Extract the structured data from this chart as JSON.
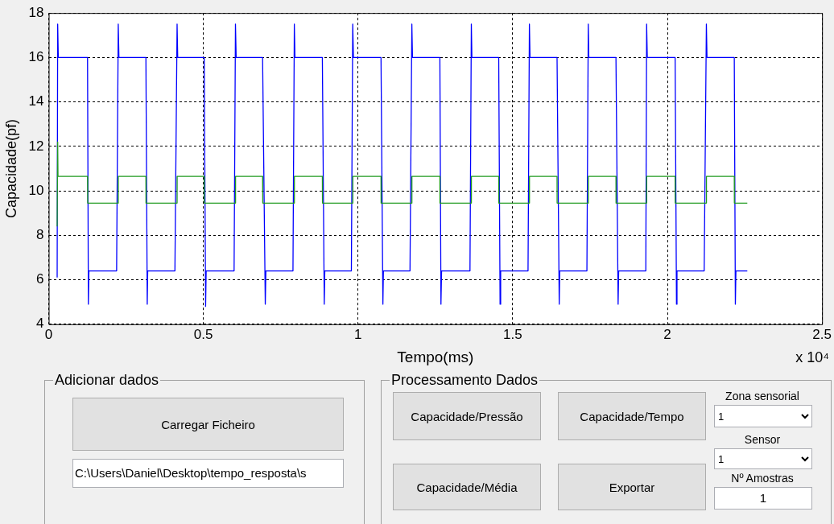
{
  "chart_data": [
    {
      "type": "line",
      "xlabel": "Tempo(ms)",
      "ylabel": "Capacidade(pf)",
      "xlim": [
        0,
        2.5
      ],
      "xticks": [
        0,
        0.5,
        1,
        1.5,
        2,
        2.5
      ],
      "ylim": [
        4,
        18
      ],
      "yticks": [
        4,
        6,
        8,
        10,
        12,
        14,
        16,
        18
      ],
      "grid": true,
      "legend": false,
      "annotations": [
        "x 10⁴"
      ],
      "series": [
        {
          "color": "#0000ff",
          "x": [
            0.0273,
            0.029,
            0.031,
            0.1255,
            0.1282,
            0.13,
            0.2195,
            0.2248,
            0.227,
            0.3142,
            0.3185,
            0.32,
            0.408,
            0.415,
            0.417,
            0.5027,
            0.5072,
            0.509,
            0.5993,
            0.6037,
            0.606,
            0.6914,
            0.7001,
            0.702,
            0.7896,
            0.794,
            0.796,
            0.8846,
            0.8907,
            0.8925,
            0.9784,
            0.9828,
            0.985,
            1.0742,
            1.0803,
            1.082,
            1.1679,
            1.1739,
            1.176,
            1.2645,
            1.268,
            1.27,
            1.3618,
            1.3662,
            1.368,
            1.4547,
            1.4591,
            1.461,
            1.5495,
            1.5539,
            1.556,
            1.6433,
            1.6503,
            1.652,
            1.7398,
            1.7442,
            1.746,
            1.8337,
            1.8407,
            1.8425,
            1.9302,
            1.9329,
            1.935,
            2.025,
            2.0294,
            2.031,
            2.1189,
            2.126,
            2.128,
            2.2162,
            2.2197,
            2.2215,
            2.2583
          ],
          "values": [
            6.1,
            17.5,
            16,
            16,
            4.9,
            6.4,
            6.4,
            17.5,
            16,
            16,
            4.9,
            6.4,
            6.4,
            17.5,
            16,
            16,
            4.8,
            6.4,
            6.4,
            17.5,
            16,
            16,
            4.9,
            6.4,
            6.4,
            17.5,
            16,
            16,
            4.9,
            6.4,
            6.4,
            17.5,
            16,
            16,
            4.9,
            6.4,
            6.4,
            17.5,
            16,
            16,
            4.9,
            6.4,
            6.4,
            17.5,
            16,
            16,
            4.9,
            6.4,
            6.4,
            17.5,
            16,
            16,
            4.9,
            6.4,
            6.4,
            17.5,
            16,
            16,
            4.9,
            6.4,
            6.4,
            17.5,
            16,
            16,
            4.9,
            6.4,
            6.4,
            17.5,
            16,
            16,
            4.9,
            6.4,
            6.4
          ]
        },
        {
          "color": "#1f9a1f",
          "x": [
            0.0273,
            0.029,
            0.03,
            0.1255,
            0.126,
            0.2248,
            0.225,
            0.3142,
            0.3145,
            0.415,
            0.4152,
            0.5027,
            0.503,
            0.6037,
            0.604,
            0.6914,
            0.692,
            0.794,
            0.7942,
            0.8846,
            0.885,
            0.9828,
            0.983,
            1.0742,
            1.0745,
            1.1739,
            1.1741,
            1.2645,
            1.2648,
            1.3662,
            1.3664,
            1.4547,
            1.455,
            1.5539,
            1.5541,
            1.6433,
            1.6436,
            1.7442,
            1.7444,
            1.8337,
            1.834,
            1.9329,
            1.9331,
            2.025,
            2.0253,
            2.126,
            2.1262,
            2.2162,
            2.2165,
            2.2583
          ],
          "values": [
            8.4,
            12.2,
            10.65,
            10.65,
            9.45,
            9.45,
            10.65,
            10.65,
            9.45,
            9.45,
            10.65,
            10.65,
            9.45,
            9.45,
            10.65,
            10.65,
            9.45,
            9.45,
            10.65,
            10.65,
            9.45,
            9.45,
            10.65,
            10.65,
            9.45,
            9.45,
            10.65,
            10.65,
            9.45,
            9.45,
            10.65,
            10.65,
            9.45,
            9.45,
            10.65,
            10.65,
            9.45,
            9.45,
            10.65,
            10.65,
            9.45,
            9.45,
            10.65,
            10.65,
            9.45,
            9.45,
            10.65,
            10.65,
            9.45,
            9.45
          ]
        }
      ]
    },
    {
      "type": "other",
      "title": "Adicionar dados",
      "annotations": [
        "Carregar Ficheiro",
        "C:\\Users\\Daniel\\Desktop\\tempo_resposta\\s"
      ]
    },
    {
      "type": "other",
      "title": "Processamento Dados",
      "annotations": [
        "Capacidade/Pressão",
        "Capacidade/Tempo",
        "Zona sensorial",
        "1",
        "Sensor",
        "1",
        "Capacidade/Média",
        "Exportar",
        "Nº Amostras",
        "1"
      ]
    }
  ]
}
